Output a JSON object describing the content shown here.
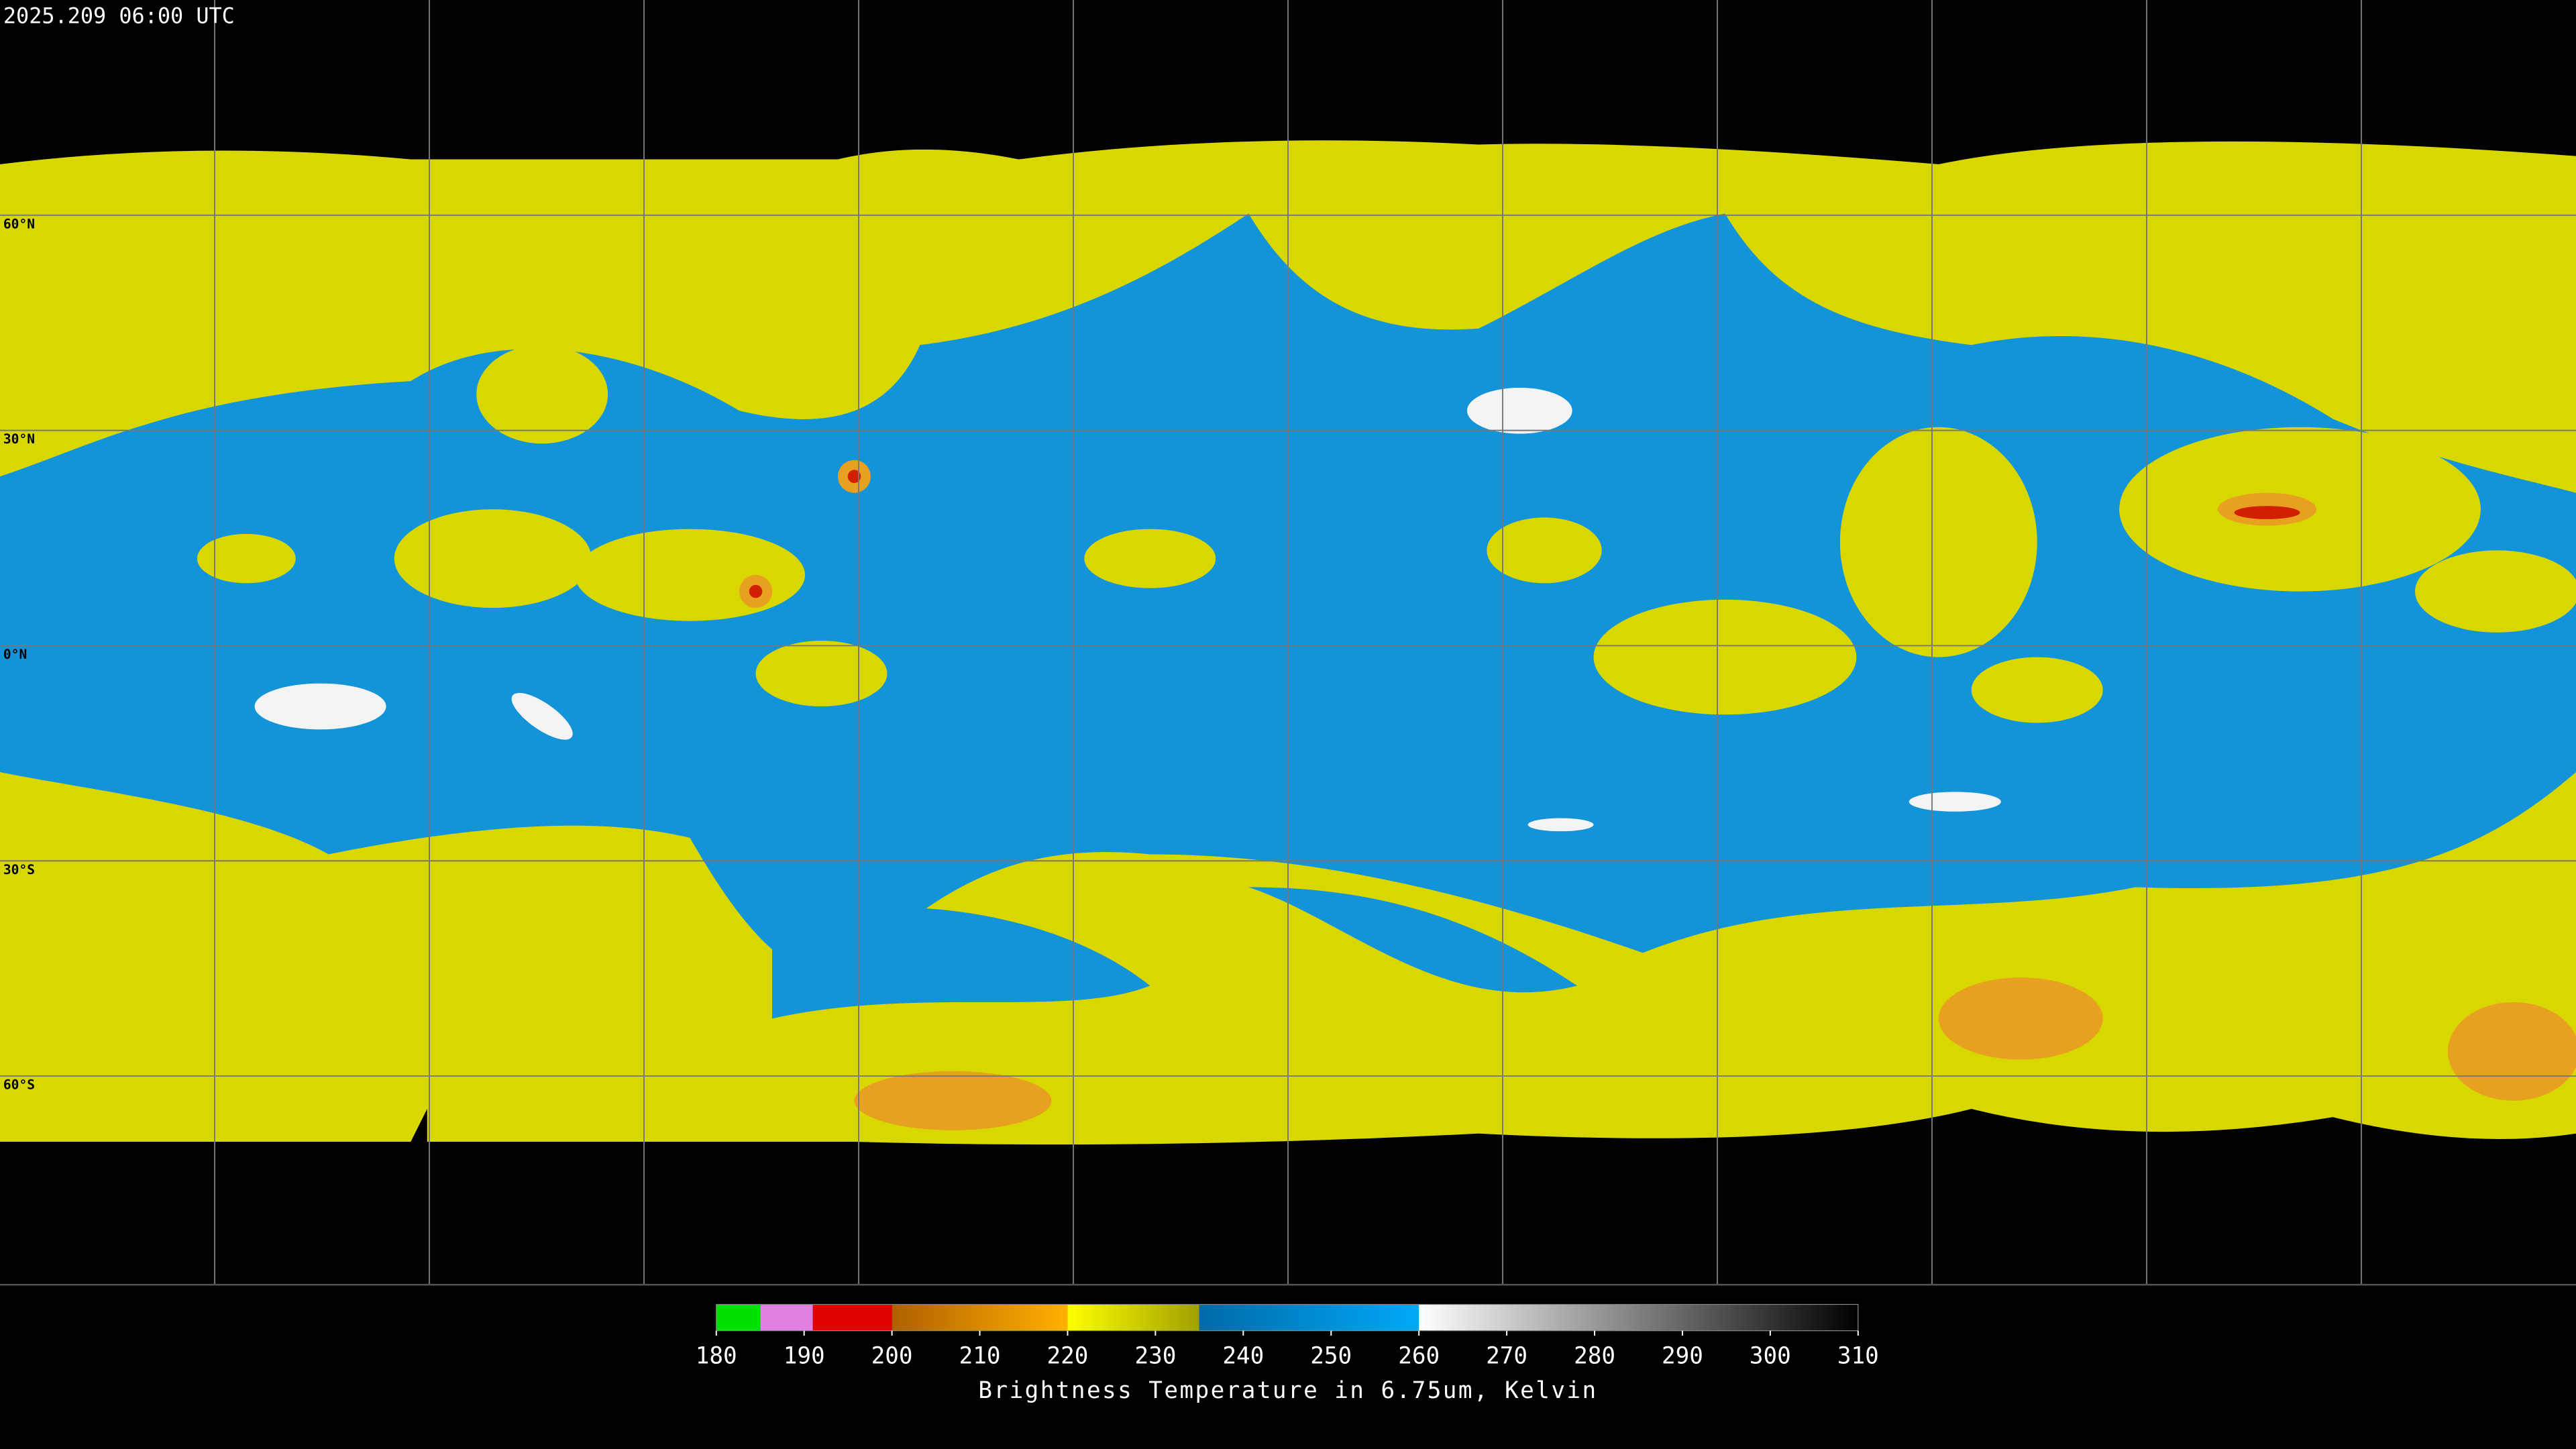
{
  "header": {
    "title": "2025.209 06:00 UTC"
  },
  "map": {
    "lat_labels": [
      "60°N",
      "30°N",
      "0°N",
      "30°S",
      "60°S"
    ]
  },
  "colorbar": {
    "range": [
      180,
      310
    ],
    "ticks": [
      180,
      190,
      200,
      210,
      220,
      230,
      240,
      250,
      260,
      270,
      280,
      290,
      300,
      310
    ],
    "segments": [
      {
        "from": 180,
        "to": 185,
        "color": "#00e000",
        "color_end": "#00e000"
      },
      {
        "from": 185,
        "to": 191,
        "color": "#e080e0",
        "color_end": "#e080e0"
      },
      {
        "from": 191,
        "to": 200,
        "color": "#e00000",
        "color_end": "#e00000"
      },
      {
        "from": 200,
        "to": 220,
        "color": "#b06000",
        "color_end": "#ffb000"
      },
      {
        "from": 220,
        "to": 235,
        "color": "#ffff00",
        "color_end": "#a0a000"
      },
      {
        "from": 235,
        "to": 260,
        "color": "#006aa8",
        "color_end": "#00a8f8"
      },
      {
        "from": 260,
        "to": 310,
        "color": "#ffffff",
        "color_end": "#000000"
      }
    ],
    "label": "Brightness Temperature in 6.75um, Kelvin"
  }
}
